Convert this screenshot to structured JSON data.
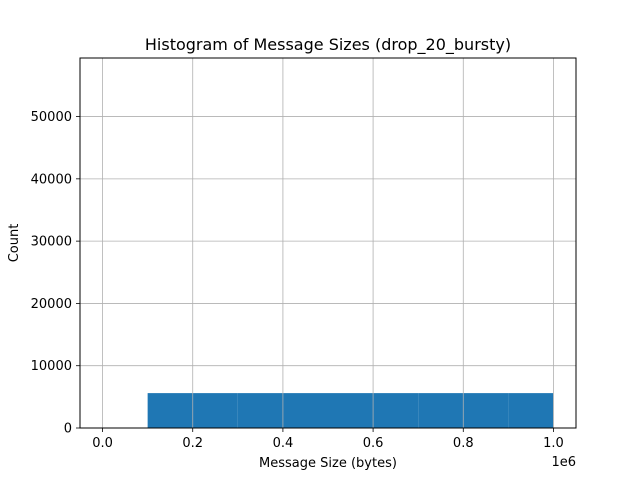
{
  "chart_data": {
    "type": "bar",
    "title": "Histogram of Message Sizes (drop_20_bursty)",
    "xlabel": "Message Size (bytes)",
    "ylabel": "Count",
    "x_scale_label": "1e6",
    "xlim": [
      -50000,
      1050000
    ],
    "ylim": [
      0,
      59400
    ],
    "x_ticks": [
      0,
      200000,
      400000,
      600000,
      800000,
      1000000
    ],
    "x_tick_labels": [
      "0.0",
      "0.2",
      "0.4",
      "0.6",
      "0.8",
      "1.0"
    ],
    "y_ticks": [
      0,
      10000,
      20000,
      30000,
      40000,
      50000
    ],
    "y_tick_labels": [
      "0",
      "10000",
      "20000",
      "30000",
      "40000",
      "50000"
    ],
    "bins": [
      {
        "start": 0,
        "end": 100000,
        "count": 0
      },
      {
        "start": 100000,
        "end": 200000,
        "count": 5600
      },
      {
        "start": 200000,
        "end": 300000,
        "count": 5600
      },
      {
        "start": 300000,
        "end": 400000,
        "count": 5600
      },
      {
        "start": 400000,
        "end": 500000,
        "count": 5600
      },
      {
        "start": 500000,
        "end": 600000,
        "count": 5600
      },
      {
        "start": 600000,
        "end": 700000,
        "count": 5600
      },
      {
        "start": 700000,
        "end": 800000,
        "count": 5600
      },
      {
        "start": 800000,
        "end": 900000,
        "count": 5600
      },
      {
        "start": 900000,
        "end": 1000000,
        "count": 5600
      }
    ],
    "grid": true,
    "bar_color": "#1f77b4",
    "grid_color": "#b0b0b0"
  }
}
